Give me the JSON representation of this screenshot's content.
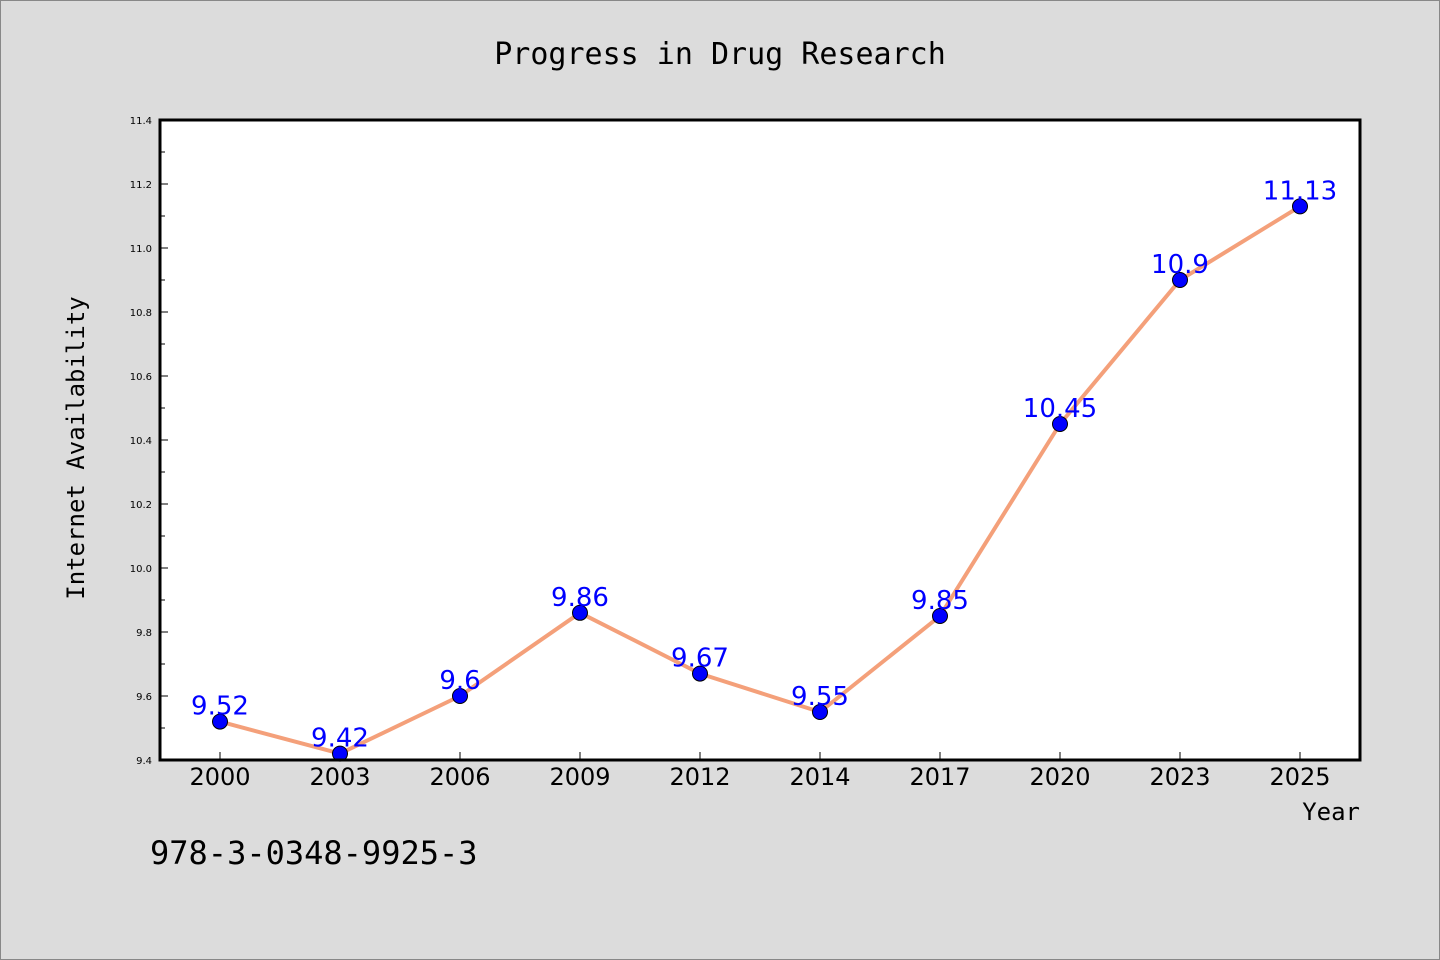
{
  "chart_data": {
    "type": "line",
    "title": "Progress in Drug Research",
    "xlabel": "Year",
    "ylabel": "Internet Availability",
    "categories": [
      "2000",
      "2003",
      "2006",
      "2009",
      "2012",
      "2014",
      "2017",
      "2020",
      "2023",
      "2025"
    ],
    "series": [
      {
        "values": [
          9.52,
          9.42,
          9.6,
          9.86,
          9.67,
          9.55,
          9.85,
          10.45,
          10.9,
          11.13
        ],
        "data_labels": [
          "9.52",
          "9.42",
          "9.6",
          "9.86",
          "9.67",
          "9.55",
          "9.85",
          "10.45",
          "10.9",
          "11.13"
        ],
        "line_color": "#f4a07a",
        "marker_color": "#0000ff"
      }
    ],
    "ylim": [
      9.4,
      11.4
    ],
    "yticks": [
      "9.4",
      "9.6",
      "9.8",
      "10.0",
      "10.2",
      "10.4",
      "10.6",
      "10.8",
      "11.0",
      "11.2",
      "11.4"
    ],
    "grid": false,
    "legend": "none",
    "label_color": "#0000ff"
  },
  "annotation": "978-3-0348-9925-3"
}
